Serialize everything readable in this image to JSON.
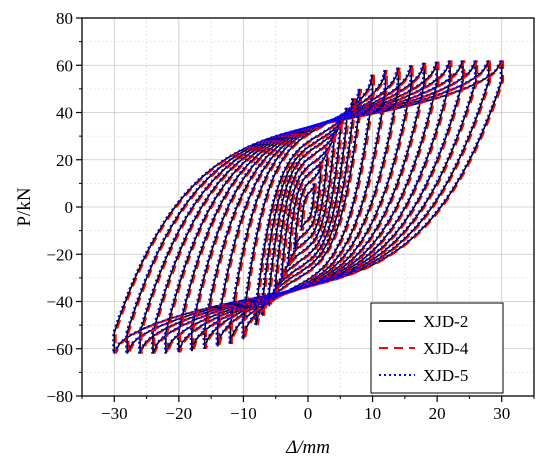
{
  "chart_data": {
    "type": "line",
    "xlabel": "Δ/mm",
    "ylabel": "P/kN",
    "xlim": [
      -35,
      35
    ],
    "ylim": [
      -80,
      80
    ],
    "xticks": [
      -30,
      -20,
      -10,
      0,
      10,
      20,
      30
    ],
    "yticks": [
      -80,
      -60,
      -40,
      -20,
      0,
      20,
      40,
      60,
      80
    ],
    "x_tick_labels": [
      "−30",
      "−20",
      "−10",
      "0",
      "10",
      "20",
      "30"
    ],
    "y_tick_labels": [
      "−80",
      "−60",
      "−40",
      "−20",
      "0",
      "20",
      "40",
      "60",
      "80"
    ],
    "grid": true,
    "legend_position": "bottom-right",
    "cycle_amplitudes_mm": [
      1,
      2,
      3,
      4,
      5,
      6,
      7,
      8,
      10,
      12,
      14,
      16,
      18,
      20,
      22,
      24,
      26,
      28,
      30
    ],
    "cycle_peak_loads_kN": [
      10,
      18,
      25,
      31,
      37,
      42,
      46,
      50,
      56,
      58,
      59,
      60,
      61,
      61.5,
      62,
      62,
      62,
      62,
      62
    ],
    "envelope_labels": {
      "positive_peak": {
        "x": 30,
        "y": 62
      },
      "negative_peak": {
        "x": -30,
        "y": -62
      },
      "negative_outer_kink": {
        "x": -23,
        "y": -22
      },
      "positive_outer_kink": {
        "x": 23,
        "y": 22
      }
    },
    "series": [
      {
        "name": "XJD-2",
        "color": "#000000",
        "dash": "solid",
        "offset": 0
      },
      {
        "name": "XJD-4",
        "color": "#ff0000",
        "dash": "dashed",
        "offset": 0.25
      },
      {
        "name": "XJD-5",
        "color": "#0000ff",
        "dash": "dotted",
        "offset": -0.2
      }
    ]
  }
}
